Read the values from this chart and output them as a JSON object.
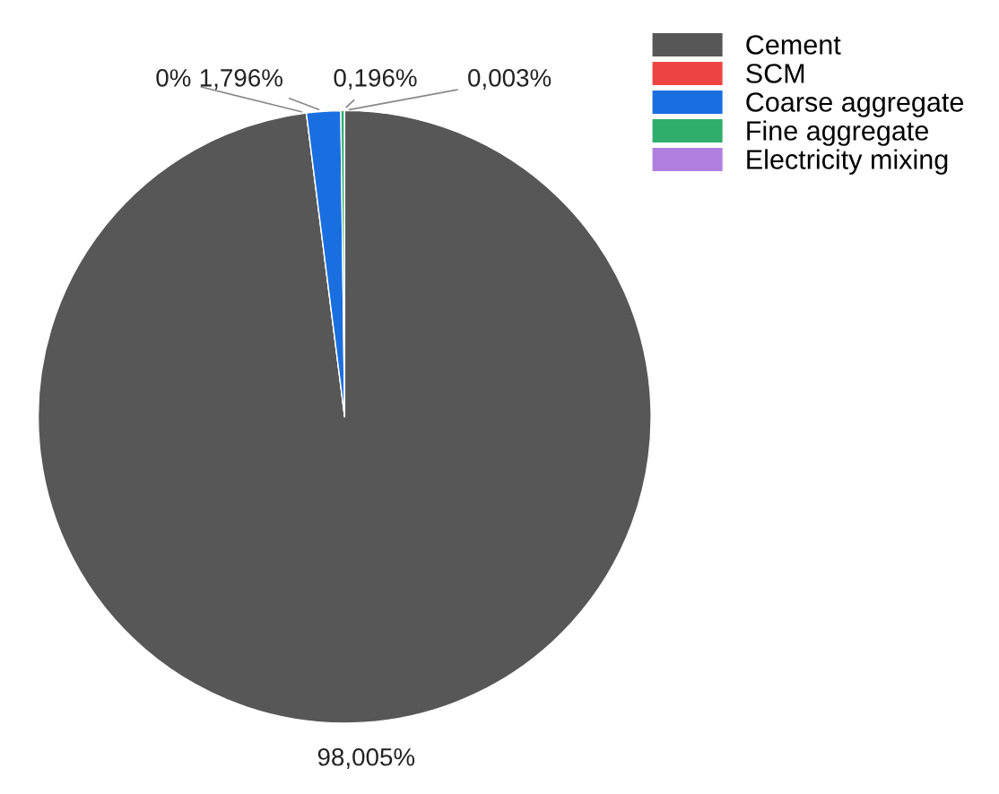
{
  "chart_data": {
    "type": "pie",
    "categories": [
      "Cement",
      "SCM",
      "Coarse aggregate",
      "Fine aggregate",
      "Electricity mixing"
    ],
    "values": [
      98.005,
      0,
      1.796,
      0.196,
      0.003
    ],
    "colors": [
      "#575757",
      "#ee4444",
      "#1a6fe0",
      "#2fae6b",
      "#b07fe0"
    ],
    "value_labels": [
      "98,005%",
      "0%",
      "1,796%",
      "0,196%",
      "0,003%"
    ],
    "legend": "top right"
  }
}
